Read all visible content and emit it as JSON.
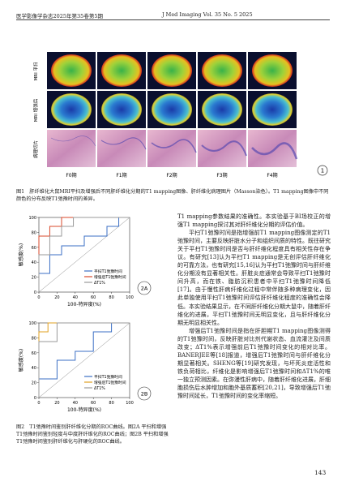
{
  "header": {
    "left": "医学影像学杂志2025年第35卷第5期",
    "right": "J Med Imaging Vol. 35 No. 5 2025"
  },
  "figure1": {
    "row_labels": [
      "MRI 平扫",
      "MRI 增强后",
      "病理切片"
    ],
    "column_labels": [
      "F0期",
      "F1期",
      "F2期",
      "F3期",
      "F4期"
    ],
    "badge": "1",
    "caption": "图1　肝纤维化大鼠MRI平扫及增强后不同肝纤维化分期的T1 mapping图像、肝纤维化病理图片（Masson染色）。T1 mapping图像中不同颜色的分布反映T1弛豫时间的差异。"
  },
  "figure2": {
    "charts": [
      {
        "type": "line",
        "panel": "2A",
        "y_label": "敏感度(%)",
        "x_label": "100-特异度(%)",
        "xlim": [
          0,
          100
        ],
        "ylim": [
          0,
          100
        ],
        "xticks": [
          0,
          20,
          40,
          60,
          80,
          100
        ],
        "yticks": [
          0,
          20,
          40,
          60,
          80,
          100
        ],
        "series": [
          {
            "name": "平扫T1弛豫时间",
            "color": "#3b6fc4",
            "x": [
              0,
              0,
              12,
              12,
              25,
              25,
              50,
              50,
              75,
              75,
              88,
              88,
              100
            ],
            "values": [
              0,
              25,
              25,
              50,
              50,
              62,
              62,
              75,
              75,
              88,
              88,
              100,
              100
            ]
          },
          {
            "name": "增强后T1弛豫时间",
            "color": "#d9482b",
            "x": [
              0,
              0,
              12,
              12,
              25,
              25,
              100
            ],
            "values": [
              0,
              75,
              75,
              88,
              88,
              100,
              100
            ]
          },
          {
            "name": "ΔT1%",
            "color": "#9a9a9a",
            "x": [
              0,
              0,
              12,
              12,
              25,
              25,
              38,
              38,
              100
            ],
            "values": [
              0,
              50,
              50,
              75,
              75,
              88,
              88,
              100,
              100
            ]
          }
        ]
      },
      {
        "type": "line",
        "panel": "2B",
        "y_label": "敏感度(%)",
        "x_label": "100-特异度(%)",
        "xlim": [
          0,
          100
        ],
        "ylim": [
          0,
          100
        ],
        "xticks": [
          0,
          20,
          40,
          60,
          80,
          100
        ],
        "yticks": [
          0,
          20,
          40,
          60,
          80,
          100
        ],
        "series": [
          {
            "name": "平扫T1弛豫时间",
            "color": "#3b6fc4",
            "x": [
              0,
              0,
              20,
              20,
              40,
              40,
              60,
              60,
              80,
              80,
              100
            ],
            "values": [
              0,
              25,
              25,
              50,
              50,
              62,
              62,
              88,
              88,
              100,
              100
            ]
          },
          {
            "name": "增强后T1弛豫时间",
            "color": "#e0a020",
            "x": [
              0,
              0,
              10,
              10,
              100
            ],
            "values": [
              0,
              88,
              88,
              100,
              100
            ]
          },
          {
            "name": "ΔT1%",
            "color": "#9a9a9a",
            "x": [
              0,
              0,
              20,
              20,
              100
            ],
            "values": [
              0,
              75,
              75,
              100,
              100
            ]
          }
        ]
      }
    ],
    "caption": "图2　T1弛豫时间鉴别肝纤维化分期的ROC曲线。图2A 平扫和增强T1弛豫时间鉴别轻度与中度肝纤维化的ROC曲线；图2B 平扫和增强T1弛豫时间鉴别肝纤维化与肝硬化的ROC曲线。"
  },
  "body": {
    "paragraphs": [
      "T1 mapping参数结果的准确性。本实验基于BI场校正的增强T1 mapping探讨其对肝纤维化分期的评估价值。",
      "平扫T1弛豫时间是指增强前T1 mapping图像测定的T1弛豫时间，主要反映肝脏水分子和组织间质的特性。既往研究关于平扫T1弛豫时间是否与肝纤维化程度具有相关性存在争议。有研究[13]认为平扫T1 mapping是无创评估肝纤维化的可靠方法，也有研究[15,16]认为平扫T1弛豫时间与肝纤维化分期没有显著相关性。肝脏炎症通常会导致平扫T1弛豫时间升高，而在铁、脂肪沉积患者中平扫T1弛豫时间降低[17]。由于慢性肝病纤维化过程中常伴随多种病理变化，因此单独使用平扫T1弛豫时间评估肝纤维化程度的准确性会降低。本实验结果显示，在不同肝纤维化分期大鼠中，随着肝纤维化的进展，平扫T1弛豫时间无明显变化，且与肝纤维化分期无明显相关性。",
      "增强后T1弛豫时间是指在肝胆期T1 mapping图像测得的T1弛豫时间，反映肝脏对比剂代谢状态、血流灌注及间质改变；ΔT1%表示增强前后T1弛豫时间变化的相对比率。BANERJEE等[18]报道，增强后T1弛豫时间与肝纤维化分期显著相关。SHENG等[19]研究发现，与坏死炎症活性和铁负荷相比，纤维化是影响增强后T1弛豫时间和ΔT1%的唯一独立预测因素。在弥漫性肝病中，随着肝纤维化进展，肝细胞损伤后水肿增加和胞外基质蓄积[20,21]，导致增强后T1弛豫时间延长，T1弛豫时间的变化率缩短。"
    ]
  },
  "page_number": "143"
}
